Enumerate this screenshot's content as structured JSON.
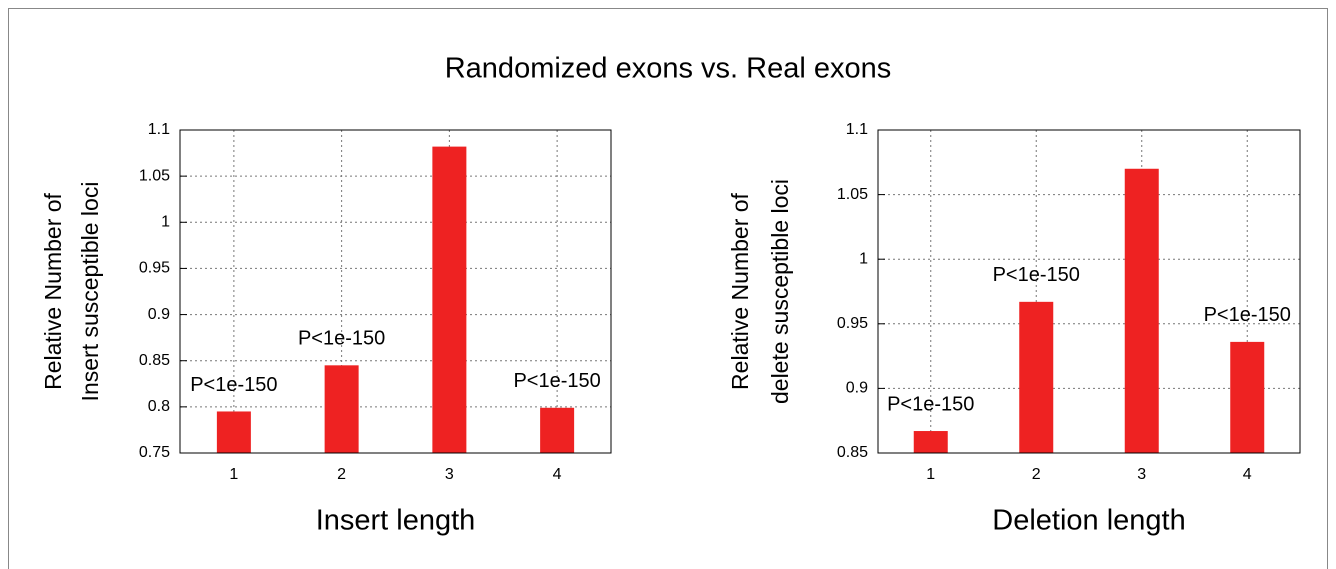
{
  "title": "Randomized exons vs. Real exons",
  "chart_data": [
    {
      "type": "bar",
      "xlabel": "Insert length",
      "ylabel": [
        "Relative Number of",
        "Insert susceptible loci"
      ],
      "categories": [
        "1",
        "2",
        "3",
        "4"
      ],
      "values": [
        0.795,
        0.845,
        1.082,
        0.799
      ],
      "bar_labels": [
        "P<1e-150",
        "P<1e-150",
        null,
        "P<1e-150"
      ],
      "color": "#ee2222",
      "ylim": [
        0.75,
        1.1
      ],
      "yticks": [
        0.75,
        0.8,
        0.85,
        0.9,
        0.95,
        1,
        1.05,
        1.1
      ],
      "grid": true
    },
    {
      "type": "bar",
      "xlabel": "Deletion length",
      "ylabel": [
        "Relative Number of",
        "delete susceptible loci"
      ],
      "categories": [
        "1",
        "2",
        "3",
        "4"
      ],
      "values": [
        0.867,
        0.967,
        1.07,
        0.936
      ],
      "bar_labels": [
        "P<1e-150",
        "P<1e-150",
        null,
        "P<1e-150"
      ],
      "color": "#ee2222",
      "ylim": [
        0.85,
        1.1
      ],
      "yticks": [
        0.85,
        0.9,
        0.95,
        1,
        1.05,
        1.1
      ],
      "grid": true
    }
  ]
}
